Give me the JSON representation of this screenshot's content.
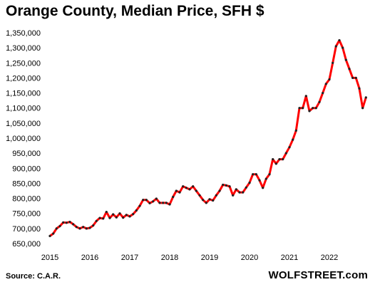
{
  "chart_data": {
    "type": "line",
    "title": "Orange County, Median Price, SFH $",
    "xlabel": "",
    "ylabel": "",
    "x_ticks": [
      "2015",
      "2016",
      "2017",
      "2018",
      "2019",
      "2020",
      "2021",
      "2022"
    ],
    "y_ticks": [
      "650,000",
      "700,000",
      "750,000",
      "800,000",
      "850,000",
      "900,000",
      "950,000",
      "1,000,000",
      "1,050,000",
      "1,100,000",
      "1,150,000",
      "1,200,000",
      "1,250,000",
      "1,300,000",
      "1,350,000"
    ],
    "ylim": [
      650000,
      1350000
    ],
    "xlim": [
      "2015-01",
      "2023-01"
    ],
    "line_color": "#ff0000",
    "marker_color": "#222222",
    "grid": false,
    "series": [
      {
        "x": [
          "2015-01",
          "2015-02",
          "2015-03",
          "2015-04",
          "2015-05",
          "2015-06",
          "2015-07",
          "2015-08",
          "2015-09",
          "2015-10",
          "2015-11",
          "2015-12",
          "2016-01",
          "2016-02",
          "2016-03",
          "2016-04",
          "2016-05",
          "2016-06",
          "2016-07",
          "2016-08",
          "2016-09",
          "2016-10",
          "2016-11",
          "2016-12",
          "2017-01",
          "2017-02",
          "2017-03",
          "2017-04",
          "2017-05",
          "2017-06",
          "2017-07",
          "2017-08",
          "2017-09",
          "2017-10",
          "2017-11",
          "2017-12",
          "2018-01",
          "2018-02",
          "2018-03",
          "2018-04",
          "2018-05",
          "2018-06",
          "2018-07",
          "2018-08",
          "2018-09",
          "2018-10",
          "2018-11",
          "2018-12",
          "2019-01",
          "2019-02",
          "2019-03",
          "2019-04",
          "2019-05",
          "2019-06",
          "2019-07",
          "2019-08",
          "2019-09",
          "2019-10",
          "2019-11",
          "2019-12",
          "2020-01",
          "2020-02",
          "2020-03",
          "2020-04",
          "2020-05",
          "2020-06",
          "2020-07",
          "2020-08",
          "2020-09",
          "2020-10",
          "2020-11",
          "2020-12",
          "2021-01",
          "2021-02",
          "2021-03",
          "2021-04",
          "2021-05",
          "2021-06",
          "2021-07",
          "2021-08",
          "2021-09",
          "2021-10",
          "2021-11",
          "2021-12",
          "2022-01",
          "2022-02",
          "2022-03",
          "2022-04",
          "2022-05",
          "2022-06",
          "2022-07",
          "2022-08",
          "2022-09",
          "2022-10",
          "2022-11",
          "2022-12"
        ],
        "values": [
          675000,
          683000,
          700000,
          708000,
          720000,
          719000,
          722000,
          714000,
          705000,
          700000,
          705000,
          700000,
          702000,
          710000,
          725000,
          735000,
          733000,
          755000,
          735000,
          747000,
          737000,
          750000,
          736000,
          745000,
          740000,
          748000,
          760000,
          775000,
          795000,
          795000,
          784000,
          790000,
          799000,
          785000,
          785000,
          785000,
          780000,
          805000,
          825000,
          820000,
          840000,
          835000,
          830000,
          840000,
          825000,
          810000,
          795000,
          785000,
          797000,
          793000,
          810000,
          825000,
          845000,
          843000,
          840000,
          810000,
          830000,
          820000,
          820000,
          836000,
          852000,
          880000,
          880000,
          860000,
          835000,
          865000,
          880000,
          930000,
          915000,
          930000,
          930000,
          950000,
          970000,
          995000,
          1025000,
          1100000,
          1100000,
          1140000,
          1090000,
          1100000,
          1100000,
          1120000,
          1150000,
          1180000,
          1195000,
          1250000,
          1305000,
          1325000,
          1300000,
          1260000,
          1230000,
          1200000,
          1200000,
          1165000,
          1100000,
          1135000
        ]
      }
    ]
  },
  "footer": {
    "source": "Source: C.A.R.",
    "brand": "WOLFSTREET.com"
  }
}
